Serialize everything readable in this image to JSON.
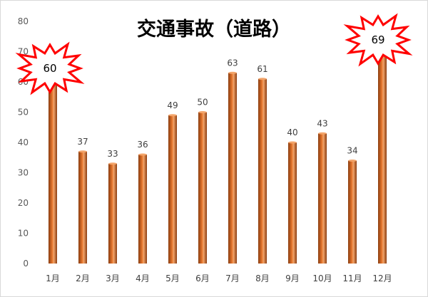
{
  "chart_data": {
    "type": "bar",
    "title": "交通事故（道路）",
    "categories": [
      "1月",
      "2月",
      "3月",
      "4月",
      "5月",
      "6月",
      "7月",
      "8月",
      "9月",
      "10月",
      "11月",
      "12月"
    ],
    "values": [
      60,
      37,
      33,
      36,
      49,
      50,
      63,
      61,
      40,
      43,
      34,
      69
    ],
    "highlighted": [
      "1月",
      "12月"
    ],
    "ylim": [
      0,
      80
    ],
    "yticks": [
      0,
      10,
      20,
      30,
      40,
      50,
      60,
      70,
      80
    ],
    "grid": false,
    "legend": "none",
    "colors": {
      "bar_dark": "#8a3c0f",
      "bar_mid": "#e8782e",
      "bar_light": "#f3a56b",
      "burst_stroke": "#ff0000",
      "burst_fill": "#ffffff"
    }
  }
}
